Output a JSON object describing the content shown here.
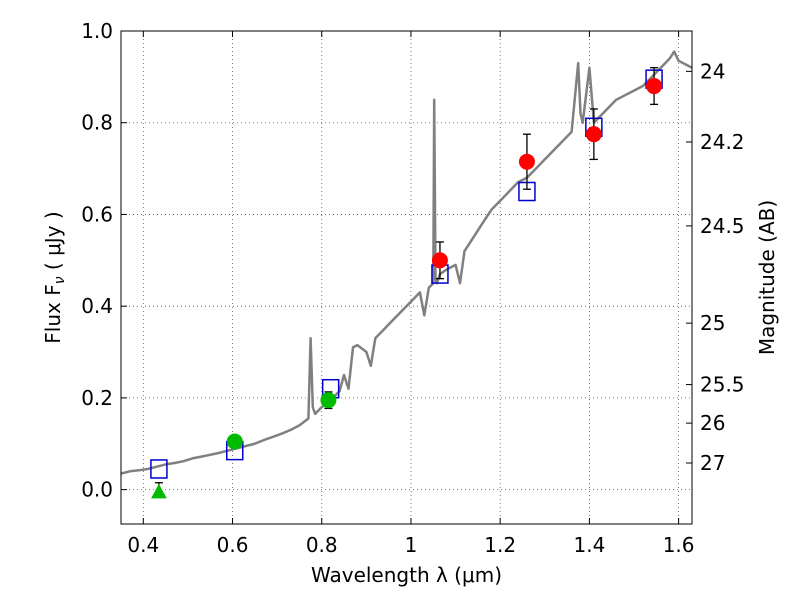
{
  "chart_data": {
    "type": "scatter",
    "xlabel": "Wavelength  λ (μm)",
    "ylabel": "Flux  F",
    "ylabel_subscript": "ν",
    "ylabel_unit": " ( μJy )",
    "y2label": "Magnitude (AB)",
    "xlim": [
      0.35,
      1.63
    ],
    "ylim": [
      -0.075,
      1.0
    ],
    "grid": true,
    "x_ticks": [
      0.4,
      0.6,
      0.8,
      1.0,
      1.2,
      1.4,
      1.6
    ],
    "x_tick_labels": [
      "0.4",
      "0.6",
      "0.8",
      "1",
      "1.2",
      "1.4",
      "1.6"
    ],
    "y_ticks": [
      0.0,
      0.2,
      0.4,
      0.6,
      0.8,
      1.0
    ],
    "y_tick_labels": [
      "0.0",
      "0.2",
      "0.4",
      "0.6",
      "0.8",
      "1.0"
    ],
    "y2_ticks": [
      {
        "label": "24",
        "flux": 0.912
      },
      {
        "label": "24.2",
        "flux": 0.758
      },
      {
        "label": "24.5",
        "flux": 0.575
      },
      {
        "label": "25",
        "flux": 0.363
      },
      {
        "label": "25.5",
        "flux": 0.229
      },
      {
        "label": "26",
        "flux": 0.145
      },
      {
        "label": "27",
        "flux": 0.058
      }
    ],
    "colors": {
      "model": "#808080",
      "box": "#0000cc",
      "red": "#ff0000",
      "green": "#00bb00",
      "errorbar": "#000000",
      "grid": "#555555"
    },
    "series": [
      {
        "style": "line",
        "x": [
          0.35,
          0.37,
          0.39,
          0.41,
          0.43,
          0.45,
          0.47,
          0.49,
          0.51,
          0.53,
          0.55,
          0.57,
          0.59,
          0.61,
          0.63,
          0.65,
          0.67,
          0.69,
          0.71,
          0.73,
          0.75,
          0.77,
          0.775,
          0.78,
          0.785,
          0.79,
          0.8,
          0.82,
          0.84,
          0.85,
          0.86,
          0.87,
          0.88,
          0.9,
          0.91,
          0.92,
          0.94,
          0.96,
          0.98,
          1.0,
          1.02,
          1.03,
          1.04,
          1.05,
          1.052,
          1.055,
          1.058,
          1.065,
          1.08,
          1.1,
          1.11,
          1.12,
          1.14,
          1.16,
          1.18,
          1.2,
          1.22,
          1.24,
          1.26,
          1.28,
          1.3,
          1.32,
          1.34,
          1.36,
          1.37,
          1.375,
          1.38,
          1.385,
          1.4,
          1.41,
          1.42,
          1.44,
          1.46,
          1.48,
          1.5,
          1.52,
          1.54,
          1.56,
          1.58,
          1.59,
          1.6,
          1.62,
          1.63
        ],
        "y": [
          0.035,
          0.04,
          0.042,
          0.045,
          0.05,
          0.055,
          0.058,
          0.062,
          0.068,
          0.072,
          0.076,
          0.08,
          0.085,
          0.09,
          0.095,
          0.1,
          0.108,
          0.115,
          0.122,
          0.13,
          0.14,
          0.155,
          0.33,
          0.18,
          0.165,
          0.17,
          0.18,
          0.195,
          0.215,
          0.25,
          0.22,
          0.31,
          0.315,
          0.3,
          0.27,
          0.33,
          0.35,
          0.37,
          0.39,
          0.41,
          0.43,
          0.38,
          0.44,
          0.45,
          0.85,
          0.46,
          0.45,
          0.47,
          0.48,
          0.49,
          0.45,
          0.52,
          0.55,
          0.58,
          0.61,
          0.63,
          0.65,
          0.67,
          0.68,
          0.7,
          0.72,
          0.74,
          0.76,
          0.78,
          0.88,
          0.93,
          0.82,
          0.8,
          0.92,
          0.8,
          0.81,
          0.83,
          0.85,
          0.86,
          0.87,
          0.88,
          0.9,
          0.92,
          0.94,
          0.955,
          0.935,
          0.925,
          0.92
        ]
      },
      {
        "style": "open-square",
        "x": [
          0.435,
          0.605,
          0.82,
          1.065,
          1.26,
          1.41,
          1.545
        ],
        "y": [
          0.045,
          0.085,
          0.22,
          0.47,
          0.65,
          0.79,
          0.895
        ]
      },
      {
        "style": "red-circle",
        "x": [
          1.065,
          1.26,
          1.41,
          1.545
        ],
        "y": [
          0.5,
          0.715,
          0.775,
          0.88
        ],
        "yerr": [
          0.04,
          0.06,
          0.055,
          0.04
        ]
      },
      {
        "style": "green-circle",
        "x": [
          0.605,
          0.815
        ],
        "y": [
          0.105,
          0.195
        ],
        "yerr": [
          0.012,
          0.018
        ]
      },
      {
        "style": "green-triangle",
        "x": [
          0.435
        ],
        "y": [
          -0.005
        ],
        "yerr_up": 0.02
      }
    ]
  }
}
